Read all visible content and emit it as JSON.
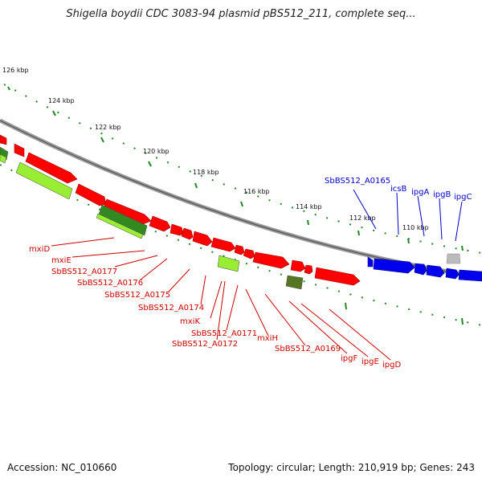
{
  "title": "Shigella boydii CDC 3083-94 plasmid pBS512_211, complete seq...",
  "footer": {
    "accession": "Accession: NC_010660",
    "stats": "Topology: circular; Length: 210,919 bp; Genes: 243"
  },
  "ticks": [
    "126 kbp",
    "124 kbp",
    "122 kbp",
    "120 kbp",
    "118 kbp",
    "116 kbp",
    "114 kbp",
    "112 kbp",
    "110 kbp"
  ],
  "labels_red": [
    "mxiD",
    "mxiE",
    "SbBS512_A0177",
    "SbBS512_A0176",
    "SbBS512_A0175",
    "SbBS512_A0174",
    "mxiK",
    "SbBS512_A0171",
    "SbBS512_A0172",
    "mxiH",
    "SbBS512_A0169",
    "ipgF",
    "ipgE",
    "ipgD"
  ],
  "labels_blue": [
    "SbBS512_A0165",
    "icsB",
    "ipgA",
    "ipgB",
    "ipgC"
  ],
  "colors": {
    "forward_gene": "#ff0000",
    "blue_gene": "#0000ee",
    "rna_light": "#99ee33",
    "rna_dark": "#338822",
    "backbone": "#888888",
    "tick": "#228822"
  }
}
